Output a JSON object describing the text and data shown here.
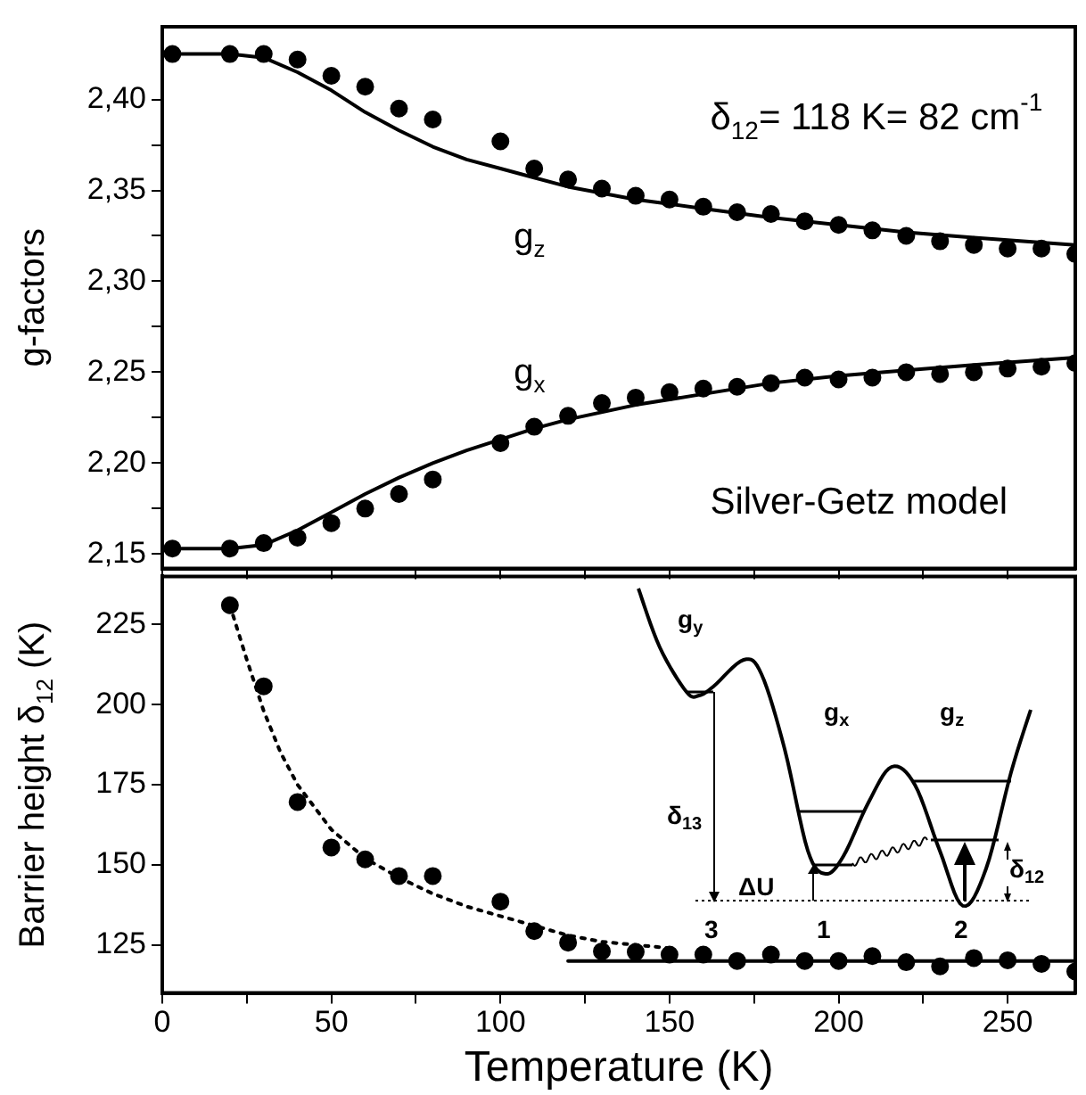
{
  "chart_data": [
    {
      "type": "scatter",
      "ylabel": "g-factors",
      "xlim": [
        0,
        270
      ],
      "xticks": [
        0,
        {
          "value": 25,
          "label": null
        },
        50,
        {
          "value": 75,
          "label": null
        },
        100,
        {
          "value": 125,
          "label": null
        },
        150,
        {
          "value": 175,
          "label": null
        },
        200,
        {
          "value": 225,
          "label": null
        },
        250
      ],
      "ylim": [
        2.142,
        2.44
      ],
      "yticks": [
        {
          "value": 2.15,
          "label": "2,15"
        },
        {
          "value": 2.175,
          "label": null
        },
        {
          "value": 2.2,
          "label": "2,20"
        },
        {
          "value": 2.225,
          "label": null
        },
        {
          "value": 2.25,
          "label": "2,25"
        },
        {
          "value": 2.275,
          "label": null
        },
        {
          "value": 2.3,
          "label": "2,30"
        },
        {
          "value": 2.325,
          "label": null
        },
        {
          "value": 2.35,
          "label": "2,35"
        },
        {
          "value": 2.375,
          "label": null
        },
        {
          "value": 2.4,
          "label": "2,40"
        }
      ],
      "tick_labels": "y",
      "marker": "circle",
      "series": [
        {
          "type": "scatter",
          "color": "#000000",
          "x": [
            3,
            20,
            30,
            40,
            50,
            60,
            70,
            80,
            100,
            110,
            120,
            130,
            140,
            150,
            160,
            170,
            180,
            190,
            200,
            210,
            220,
            230,
            240,
            250,
            260,
            270
          ],
          "values": [
            2.425,
            2.425,
            2.425,
            2.422,
            2.413,
            2.407,
            2.395,
            2.389,
            2.377,
            2.362,
            2.356,
            2.351,
            2.347,
            2.345,
            2.341,
            2.338,
            2.337,
            2.333,
            2.331,
            2.328,
            2.325,
            2.322,
            2.32,
            2.318,
            2.318,
            2.315
          ]
        },
        {
          "type": "scatter",
          "color": "#000000",
          "x": [
            3,
            20,
            30,
            40,
            50,
            60,
            70,
            80,
            100,
            110,
            120,
            130,
            140,
            150,
            160,
            170,
            180,
            190,
            200,
            210,
            220,
            230,
            240,
            250,
            260,
            270
          ],
          "values": [
            2.153,
            2.153,
            2.156,
            2.159,
            2.167,
            2.175,
            2.183,
            2.191,
            2.211,
            2.22,
            2.226,
            2.233,
            2.236,
            2.239,
            2.241,
            2.242,
            2.244,
            2.247,
            2.246,
            2.247,
            2.25,
            2.249,
            2.25,
            2.252,
            2.253,
            2.255
          ]
        },
        {
          "type": "line",
          "color": "#000000",
          "marker": "none",
          "line_style": "solid",
          "x": [
            0,
            20,
            30,
            40,
            50,
            60,
            70,
            80,
            90,
            100,
            110,
            120,
            140,
            160,
            180,
            200,
            220,
            240,
            270
          ],
          "values": [
            2.425,
            2.425,
            2.423,
            2.415,
            2.405,
            2.393,
            2.383,
            2.374,
            2.367,
            2.362,
            2.357,
            2.352,
            2.345,
            2.34,
            2.335,
            2.331,
            2.327,
            2.324,
            2.32
          ]
        },
        {
          "type": "line",
          "color": "#000000",
          "marker": "none",
          "line_style": "solid",
          "x": [
            0,
            20,
            30,
            40,
            50,
            60,
            70,
            80,
            90,
            100,
            110,
            120,
            140,
            160,
            180,
            200,
            220,
            240,
            270
          ],
          "values": [
            2.153,
            2.153,
            2.155,
            2.163,
            2.173,
            2.183,
            2.192,
            2.2,
            2.207,
            2.213,
            2.219,
            2.224,
            2.232,
            2.238,
            2.244,
            2.248,
            2.251,
            2.254,
            2.258
          ]
        }
      ],
      "annotations": [
        "δ$_{12}$= 118 K= 82 cm$^{-1}$",
        "Silver-Getz model",
        "g$_{z}$",
        "g$_{x}$"
      ]
    },
    {
      "type": "scatter",
      "xlabel": "Temperature (K)",
      "ylabel": "Barrier height δ$_{12}$ (K)",
      "xlim": [
        0,
        270
      ],
      "xticks": [
        0,
        {
          "value": 25,
          "label": null
        },
        50,
        {
          "value": 75,
          "label": null
        },
        100,
        {
          "value": 125,
          "label": null
        },
        150,
        {
          "value": 175,
          "label": null
        },
        200,
        {
          "value": 225,
          "label": null
        },
        250
      ],
      "ylim": [
        110,
        240
      ],
      "yticks": [
        125,
        150,
        175,
        200,
        225
      ],
      "marker": "circle",
      "series": [
        {
          "type": "scatter",
          "color": "#000000",
          "x": [
            20,
            30,
            40,
            50,
            60,
            70,
            80,
            100,
            110,
            120,
            130,
            140,
            150,
            160,
            170,
            180,
            190,
            200,
            210,
            220,
            230,
            240,
            250,
            260,
            270
          ],
          "values": [
            231,
            205.7,
            169.6,
            155.4,
            151.7,
            146.5,
            146.5,
            138.5,
            129.3,
            125.7,
            123,
            122.8,
            122,
            122,
            120,
            122,
            120,
            120,
            121.5,
            119.6,
            118.3,
            120.9,
            120.2,
            119.1,
            116.7
          ]
        },
        {
          "type": "line",
          "color": "#000000",
          "marker": "none",
          "line_style": "dotted",
          "x": [
            20,
            25,
            30,
            35,
            40,
            50,
            60,
            70,
            80,
            90,
            100,
            110,
            120,
            130,
            140,
            150
          ],
          "values": [
            231,
            214,
            198,
            185,
            175,
            161,
            152,
            146,
            141,
            137,
            134,
            131,
            128,
            126,
            125,
            124
          ]
        },
        {
          "type": "line",
          "color": "#000000",
          "marker": "none",
          "line_style": "solid",
          "x": [
            120,
            270
          ],
          "values": [
            120,
            120
          ]
        }
      ],
      "annotations": [
        "g$_{y}$",
        "g$_{x}$",
        "g$_{z}$",
        "δ$_{13}$",
        "ΔU",
        "δ$_{12}$",
        "3",
        "1",
        "2"
      ]
    }
  ]
}
